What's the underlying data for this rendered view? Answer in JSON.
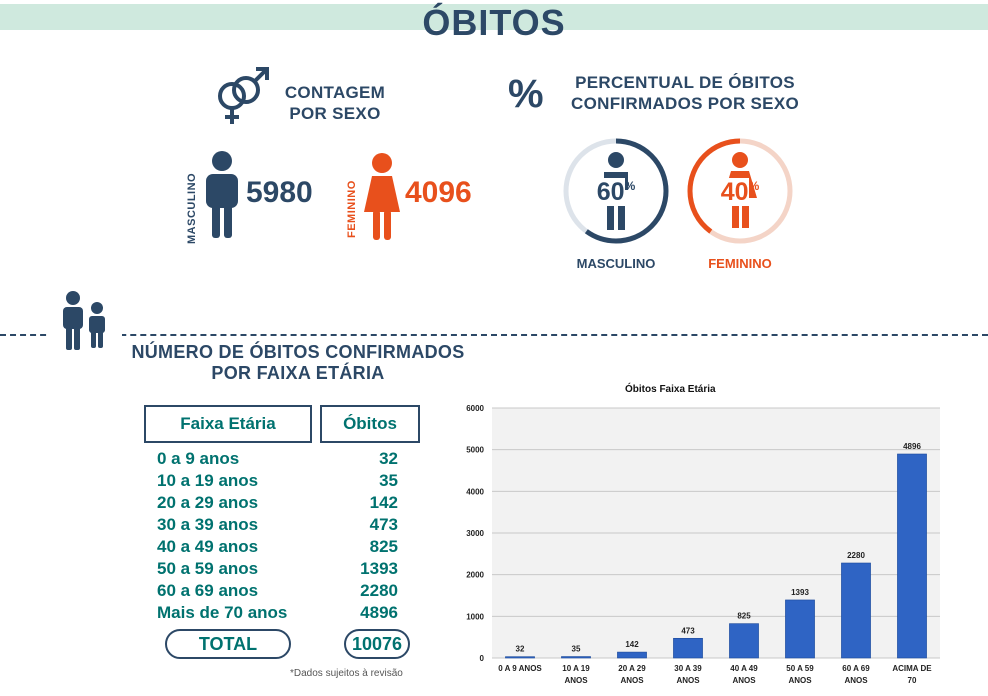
{
  "header": {
    "title": "ÓBITOS"
  },
  "count_by_sex": {
    "title_line1": "CONTAGEM",
    "title_line2": "POR SEXO",
    "male_label": "MASCULINO",
    "male_value": "5980",
    "female_label": "FEMININO",
    "female_value": "4096"
  },
  "percent_by_sex": {
    "symbol": "%",
    "title_line1": "PERCENTUAL DE ÓBITOS",
    "title_line2": "CONFIRMADOS POR SEXO",
    "male": {
      "value": "60",
      "unit": "%",
      "label": "MASCULINO",
      "fraction": 0.6
    },
    "female": {
      "value": "40",
      "unit": "%",
      "label": "FEMININO",
      "fraction": 0.4
    }
  },
  "age_section": {
    "title_line1": "NÚMERO DE ÓBITOS CONFIRMADOS",
    "title_line2": "POR FAIXA ETÁRIA",
    "col_age": "Faixa Etária",
    "col_deaths": "Óbitos",
    "rows": [
      {
        "age": "0 a 9 anos",
        "deaths": "32"
      },
      {
        "age": "10 a 19 anos",
        "deaths": "35"
      },
      {
        "age": "20 a 29 anos",
        "deaths": "142"
      },
      {
        "age": "30 a 39 anos",
        "deaths": "473"
      },
      {
        "age": "40 a 49 anos",
        "deaths": "825"
      },
      {
        "age": "50 a 59 anos",
        "deaths": "1393"
      },
      {
        "age": "60 a 69 anos",
        "deaths": "2280"
      },
      {
        "age": "Mais de 70 anos",
        "deaths": "4896"
      }
    ],
    "total_label": "TOTAL",
    "total_value": "10076",
    "footnote": "*Dados sujeitos à revisão"
  },
  "colors": {
    "navy": "#2c4866",
    "orange": "#e8501c",
    "teal": "#00726f",
    "mint": "#cfe9de",
    "bar": "#2f64c4"
  },
  "chart_data": {
    "type": "bar",
    "title": "Óbitos Faixa Etária",
    "categories": [
      [
        "0 A 9 ANOS"
      ],
      [
        "10 A 19",
        "ANOS"
      ],
      [
        "20 A 29",
        "ANOS"
      ],
      [
        "30 A 39",
        "ANOS"
      ],
      [
        "40 A 49",
        "ANOS"
      ],
      [
        "50 A 59",
        "ANOS"
      ],
      [
        "60 A 69",
        "ANOS"
      ],
      [
        "ACIMA DE",
        "70"
      ]
    ],
    "values": [
      32,
      35,
      142,
      473,
      825,
      1393,
      2280,
      4896
    ],
    "ylim": [
      0,
      6000
    ],
    "yticks": [
      0,
      1000,
      2000,
      3000,
      4000,
      5000,
      6000
    ],
    "grid": true,
    "data_labels": true
  }
}
